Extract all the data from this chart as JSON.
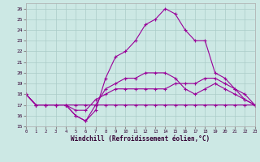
{
  "xlabel": "Windchill (Refroidissement éolien,°C)",
  "xlim": [
    0,
    23
  ],
  "ylim": [
    15,
    26.5
  ],
  "yticks": [
    15,
    16,
    17,
    18,
    19,
    20,
    21,
    22,
    23,
    24,
    25,
    26
  ],
  "xticks": [
    0,
    1,
    2,
    3,
    4,
    5,
    6,
    7,
    8,
    9,
    10,
    11,
    12,
    13,
    14,
    15,
    16,
    17,
    18,
    19,
    20,
    21,
    22,
    23
  ],
  "bg_color": "#cce8e4",
  "grid_color": "#aaccc8",
  "line_color": "#990099",
  "line1_y": [
    18,
    17,
    17,
    17,
    17,
    16,
    15.5,
    16.5,
    19.5,
    21.5,
    22,
    23,
    24.5,
    25,
    26,
    25.5,
    24,
    23,
    23,
    20,
    19.5,
    18.5,
    17.5,
    17
  ],
  "line2_y": [
    18,
    17,
    17,
    17,
    17,
    16,
    15.5,
    17,
    18.5,
    19,
    19.5,
    19.5,
    20,
    20,
    20,
    19.5,
    18.5,
    18,
    18.5,
    19,
    18.5,
    18,
    17.5,
    17
  ],
  "line3_y": [
    18,
    17,
    17,
    17,
    17,
    16.5,
    16.5,
    17.5,
    18,
    18.5,
    18.5,
    18.5,
    18.5,
    18.5,
    18.5,
    19,
    19,
    19,
    19.5,
    19.5,
    19,
    18.5,
    18,
    17
  ],
  "line4_y": [
    18,
    17,
    17,
    17,
    17,
    17,
    17,
    17,
    17,
    17,
    17,
    17,
    17,
    17,
    17,
    17,
    17,
    17,
    17,
    17,
    17,
    17,
    17,
    17
  ]
}
